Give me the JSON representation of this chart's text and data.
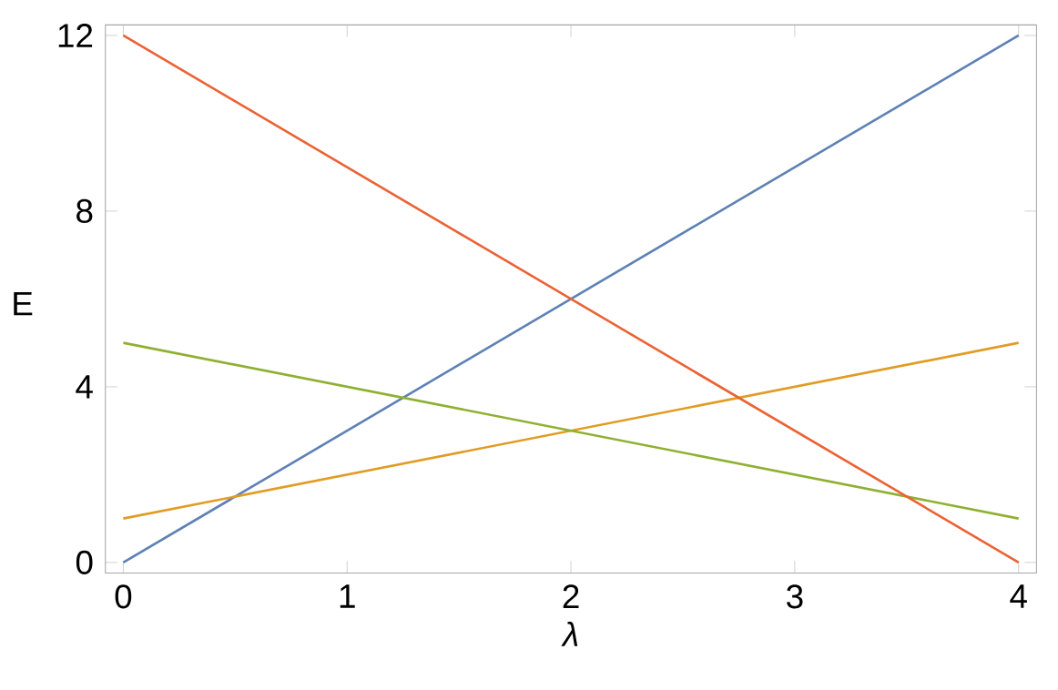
{
  "chart_data": {
    "type": "line",
    "xlabel": "λ",
    "ylabel": "E",
    "x": [
      0,
      4
    ],
    "series": [
      {
        "color": "#5e81b5",
        "values": [
          0,
          12
        ]
      },
      {
        "color": "#e19c24",
        "values": [
          1,
          5
        ]
      },
      {
        "color": "#8fb032",
        "values": [
          5,
          1
        ]
      },
      {
        "color": "#eb6235",
        "values": [
          12,
          0
        ]
      }
    ],
    "xlim": [
      -0.08,
      4.08
    ],
    "ylim": [
      -0.24,
      12.24
    ],
    "xticks": [
      0,
      1,
      2,
      3,
      4
    ],
    "yticks": [
      0,
      4,
      8,
      12
    ],
    "grid": false,
    "marker": "none",
    "line_style": "solid"
  }
}
